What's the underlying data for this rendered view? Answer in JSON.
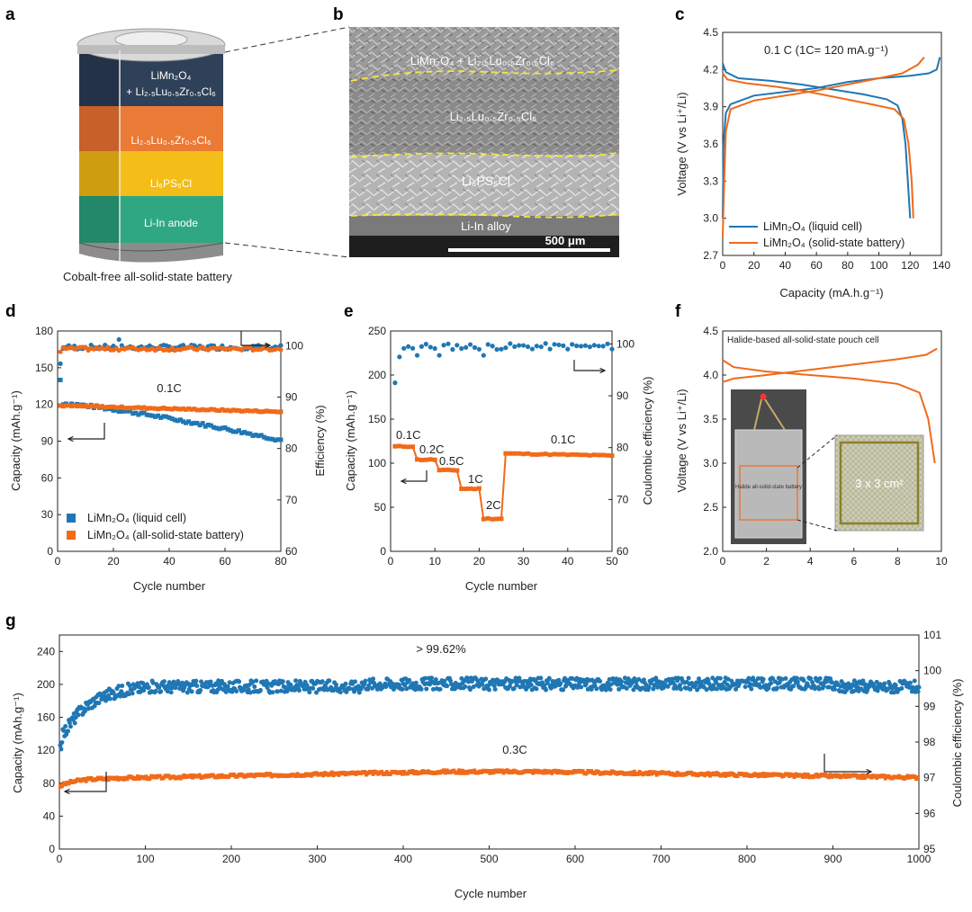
{
  "panel_labels": {
    "a": "a",
    "b": "b",
    "c": "c",
    "d": "d",
    "e": "e",
    "f": "f",
    "g": "g"
  },
  "colors": {
    "blue": "#1f77b4",
    "orange": "#f06a1a",
    "dark_blue": "#2f4159",
    "layer_orange": "#ea7a35",
    "layer_yellow": "#f4bd17",
    "layer_green": "#2fa882"
  },
  "panel_a": {
    "layers": [
      {
        "text": "LiMn₂O₄"
      },
      {
        "text": "+ Li₂.₅Lu₀.₅Zr₀.₅Cl₆"
      },
      {
        "text": "Li₂.₅Lu₀.₅Zr₀.₅Cl₆"
      },
      {
        "text": "Li₆PS₅Cl"
      },
      {
        "text": "Li-In anode"
      }
    ],
    "caption": "Cobalt-free all-solid-state battery"
  },
  "panel_b": {
    "layer1": "LiMn₂O₄ + Li₂.₅Lu₀.₅Zr₀.₅Cl₆",
    "layer2": "Li₂.₅Lu₀.₅Zr₀.₅Cl₆",
    "layer3": "Li₆PS₅Cl",
    "layer4": "Li-In alloy",
    "scalebar": "500 μm"
  },
  "chart_data": [
    {
      "id": "c",
      "type": "line",
      "title": "0.1 C (1C= 120 mA.g⁻¹)",
      "xlabel": "Capacity (mA.h.g⁻¹)",
      "ylabel": "Voltage (V vs Li⁺/Li)",
      "xlim": [
        0,
        140
      ],
      "ylim": [
        2.7,
        4.5
      ],
      "xticks": [
        0,
        20,
        40,
        60,
        80,
        100,
        120,
        140
      ],
      "yticks": [
        2.7,
        3.0,
        3.3,
        3.6,
        3.9,
        4.2,
        4.5
      ],
      "series": [
        {
          "name": "LiMn2O4 (liquid cell)",
          "color": "#1f77b4",
          "charge": [
            [
              0,
              3.0
            ],
            [
              0.5,
              3.6
            ],
            [
              2,
              3.85
            ],
            [
              5,
              3.92
            ],
            [
              20,
              3.99
            ],
            [
              40,
              4.02
            ],
            [
              60,
              4.05
            ],
            [
              80,
              4.1
            ],
            [
              100,
              4.13
            ],
            [
              120,
              4.15
            ],
            [
              132,
              4.17
            ],
            [
              137,
              4.2
            ],
            [
              139,
              4.3
            ]
          ],
          "discharge": [
            [
              0,
              4.25
            ],
            [
              2,
              4.18
            ],
            [
              10,
              4.13
            ],
            [
              30,
              4.11
            ],
            [
              50,
              4.08
            ],
            [
              70,
              4.04
            ],
            [
              90,
              4.0
            ],
            [
              105,
              3.96
            ],
            [
              112,
              3.91
            ],
            [
              115,
              3.8
            ],
            [
              117,
              3.6
            ],
            [
              118.5,
              3.3
            ],
            [
              120,
              3.0
            ]
          ]
        },
        {
          "name": "LiMn2O4 (solid-state battery)",
          "color": "#f06a1a",
          "charge": [
            [
              0,
              2.85
            ],
            [
              1,
              3.3
            ],
            [
              2,
              3.7
            ],
            [
              5,
              3.88
            ],
            [
              20,
              3.95
            ],
            [
              40,
              3.99
            ],
            [
              60,
              4.03
            ],
            [
              80,
              4.08
            ],
            [
              100,
              4.13
            ],
            [
              115,
              4.17
            ],
            [
              125,
              4.24
            ],
            [
              129,
              4.3
            ]
          ],
          "discharge": [
            [
              0,
              4.17
            ],
            [
              3,
              4.12
            ],
            [
              15,
              4.09
            ],
            [
              35,
              4.06
            ],
            [
              55,
              4.02
            ],
            [
              75,
              3.97
            ],
            [
              95,
              3.92
            ],
            [
              110,
              3.88
            ],
            [
              116,
              3.8
            ],
            [
              119,
              3.6
            ],
            [
              121,
              3.3
            ],
            [
              122,
              3.0
            ]
          ]
        }
      ]
    },
    {
      "id": "d",
      "type": "scatter",
      "annotation": "0.1C",
      "xlabel": "Cycle number",
      "ylabel": "Capacity (mAh.g⁻¹)",
      "y2label": "Efficiency (%)",
      "xlim": [
        0,
        80
      ],
      "ylim": [
        0,
        180
      ],
      "y2lim": [
        60,
        102.86
      ],
      "xticks": [
        0,
        20,
        40,
        60,
        80
      ],
      "yticks": [
        0,
        30,
        60,
        90,
        120,
        150,
        180
      ],
      "y2ticks": [
        60,
        70,
        80,
        90,
        100
      ],
      "series": [
        {
          "name": "LiMn2O4 (liquid cell)",
          "color": "#1f77b4",
          "capacity_start": 121,
          "capacity_end": 91,
          "efficiency_mean": 99.7
        },
        {
          "name": "LiMn2O4 (all-solid-state battery)",
          "color": "#f06a1a",
          "capacity_start": 119,
          "capacity_end": 114,
          "efficiency_mean": 99.4
        }
      ]
    },
    {
      "id": "e",
      "type": "scatter",
      "xlabel": "Cycle number",
      "ylabel": "Capacity (mAh.g⁻¹)",
      "y2label": "Coulombic efficiency (%)",
      "xlim": [
        0,
        50
      ],
      "ylim": [
        0,
        250
      ],
      "y2lim": [
        60,
        102.5
      ],
      "xticks": [
        0,
        10,
        20,
        30,
        40,
        50
      ],
      "yticks": [
        0,
        50,
        100,
        150,
        200,
        250
      ],
      "y2ticks": [
        60,
        70,
        80,
        90,
        100
      ],
      "rate_steps": [
        {
          "label": "0.1C",
          "start": 1,
          "end": 5,
          "capacity": 119
        },
        {
          "label": "0.2C",
          "start": 6,
          "end": 10,
          "capacity": 104
        },
        {
          "label": "0.5C",
          "start": 11,
          "end": 15,
          "capacity": 92
        },
        {
          "label": "1C",
          "start": 16,
          "end": 20,
          "capacity": 71
        },
        {
          "label": "2C",
          "start": 21,
          "end": 25,
          "capacity": 37
        },
        {
          "label": "0.1C",
          "start": 26,
          "end": 50,
          "capacity": 111
        }
      ],
      "efficiency_mean": 99.5
    },
    {
      "id": "f",
      "type": "line",
      "title": "Halide-based all-solid-state pouch cell",
      "xlabel": "",
      "ylabel": "Voltage (V vs Li⁺/Li)",
      "xlim": [
        0,
        10
      ],
      "ylim": [
        2.0,
        4.5
      ],
      "xticks": [
        0,
        2,
        4,
        6,
        8,
        10
      ],
      "yticks": [
        2.0,
        2.5,
        3.0,
        3.5,
        4.0,
        4.5
      ],
      "series": [
        {
          "name": "charge",
          "color": "#f06a1a",
          "points": [
            [
              0,
              3.92
            ],
            [
              0.5,
              3.96
            ],
            [
              2,
              4.0
            ],
            [
              4,
              4.06
            ],
            [
              6,
              4.12
            ],
            [
              8,
              4.18
            ],
            [
              9.3,
              4.23
            ],
            [
              9.8,
              4.3
            ]
          ]
        },
        {
          "name": "discharge",
          "color": "#f06a1a",
          "points": [
            [
              0,
              4.17
            ],
            [
              0.5,
              4.09
            ],
            [
              2,
              4.04
            ],
            [
              4,
              4.0
            ],
            [
              6,
              3.96
            ],
            [
              8,
              3.9
            ],
            [
              9,
              3.8
            ],
            [
              9.4,
              3.5
            ],
            [
              9.7,
              3.0
            ]
          ]
        }
      ],
      "photo_label": "Halide all-solid-state battery",
      "inset_label": "3 x 3 cm²"
    },
    {
      "id": "g",
      "type": "scatter",
      "annotation_top": "> 99.62%",
      "annotation_mid": "0.3C",
      "xlabel": "Cycle number",
      "ylabel": "Capacity (mAh.g⁻¹)",
      "y2label": "Coulombic efficiency (%)",
      "xlim": [
        0,
        1000
      ],
      "ylim": [
        0,
        260
      ],
      "y2lim": [
        95,
        101
      ],
      "xticks": [
        0,
        100,
        200,
        300,
        400,
        500,
        600,
        700,
        800,
        900,
        1000
      ],
      "yticks": [
        0,
        40,
        80,
        120,
        160,
        200,
        240
      ],
      "y2ticks": [
        95,
        96,
        97,
        98,
        99,
        100,
        101
      ],
      "capacity_start": 76,
      "capacity_peak": 94,
      "capacity_end": 87,
      "efficiency_start": 98.0,
      "efficiency_plateau": 99.6
    }
  ]
}
